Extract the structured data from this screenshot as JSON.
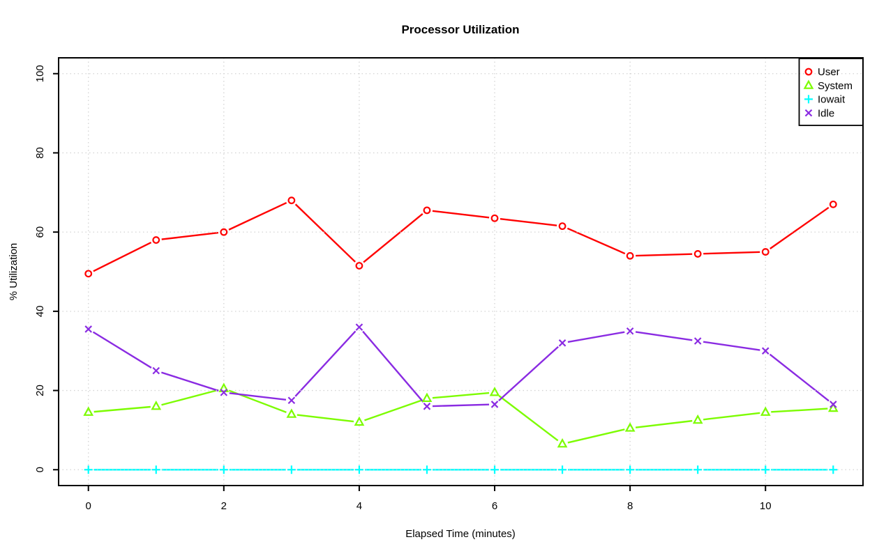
{
  "chart_data": {
    "type": "line",
    "title": "Processor Utilization",
    "xlabel": "Elapsed Time (minutes)",
    "ylabel": "% Utilization",
    "x": [
      0,
      1,
      2,
      3,
      4,
      5,
      6,
      7,
      8,
      9,
      10,
      11
    ],
    "xticks": [
      0,
      2,
      4,
      6,
      8,
      10
    ],
    "yticks": [
      0,
      20,
      40,
      60,
      80,
      100
    ],
    "xlim": [
      -0.44,
      11.44
    ],
    "ylim": [
      -4,
      104
    ],
    "grid": "dotted",
    "grid_color": "#d3d3d3",
    "legend_position": "top-right",
    "series": [
      {
        "name": "User",
        "marker": "circle",
        "color": "#ff0000",
        "values": [
          49.5,
          58,
          60,
          68,
          51.5,
          65.5,
          63.5,
          61.5,
          54,
          54.5,
          55,
          67
        ]
      },
      {
        "name": "System",
        "marker": "triangle",
        "color": "#7cfc00",
        "values": [
          14.5,
          16,
          20.5,
          14,
          12,
          18,
          19.5,
          6.5,
          10.5,
          12.5,
          14.5,
          15.5
        ]
      },
      {
        "name": "Iowait",
        "marker": "plus",
        "color": "#00ffff",
        "values": [
          0,
          0,
          0,
          0,
          0,
          0,
          0,
          0,
          0,
          0,
          0,
          0
        ]
      },
      {
        "name": "Idle",
        "marker": "x",
        "color": "#8a2be2",
        "values": [
          35.5,
          25,
          19.5,
          17.5,
          36,
          16,
          16.5,
          32,
          35,
          32.5,
          30,
          16.5
        ]
      }
    ]
  }
}
